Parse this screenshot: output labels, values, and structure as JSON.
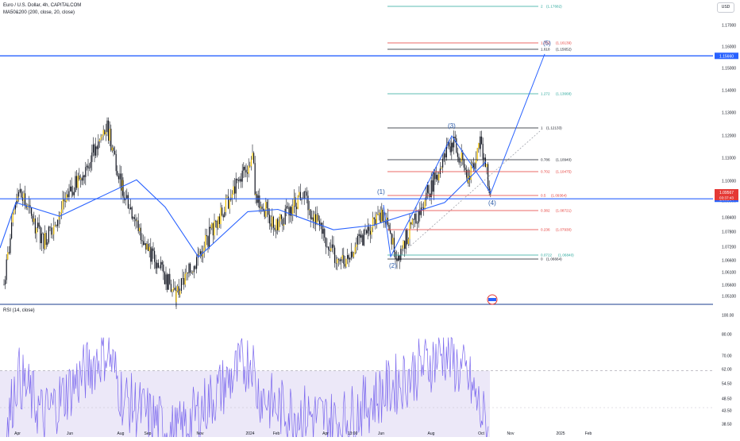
{
  "header": {
    "symbol_title": "Euro / U.S. Dollar, 4h, CAPITALCOM",
    "ma_indicator": "MA50&200 (200, close, 20, close)",
    "currency_badge": "USD",
    "rsi_indicator": "RSI (14, close)"
  },
  "colors": {
    "candle": "#131722",
    "candle_up_highlight": "#f0c000",
    "ma_line": "#2962ff",
    "level_line": "#2962ff",
    "wave_label": "#2a5aa8",
    "rsi_line": "#7b68ee",
    "rsi_fill": "#ece8f8",
    "fib_red": "#e53935",
    "fib_teal": "#26a69a",
    "fib_black": "#131722",
    "price_tag": "#e53935",
    "level_tag": "#2962ff"
  },
  "chart_data": [
    {
      "type": "line",
      "title": "Euro / U.S. Dollar, 4h, CAPITALCOM",
      "y_axis_ticks": [
        "1.17000",
        "1.16000",
        "1.15000",
        "1.14000",
        "1.13000",
        "1.12000",
        "1.11000",
        "1.10000",
        "1.09000",
        "1.08400",
        "1.07800",
        "1.07200",
        "1.06600",
        "1.06100",
        "1.05600",
        "1.05100"
      ],
      "x_axis_ticks": [
        "Apr",
        "Jun",
        "Aug",
        "Sep",
        "Nov",
        "2024",
        "Feb",
        "Apr",
        "13:00",
        "Jun",
        "Aug",
        "Oct",
        "Nov",
        "2025",
        "Feb"
      ],
      "price_anchors": [
        {
          "x": "Mar",
          "y": 1.056
        },
        {
          "x": "Apr",
          "y": 1.098
        },
        {
          "x": "May",
          "y": 1.075
        },
        {
          "x": "Jul",
          "y": 1.125
        },
        {
          "x": "Aug",
          "y": 1.098
        },
        {
          "x": "Sep",
          "y": 1.072
        },
        {
          "x": "Oct",
          "y": 1.051
        },
        {
          "x": "Dec",
          "y": 1.112
        },
        {
          "x": "2024",
          "y": 1.096
        },
        {
          "x": "Feb",
          "y": 1.081
        },
        {
          "x": "Mar",
          "y": 1.096
        },
        {
          "x": "Apr",
          "y": 1.064
        },
        {
          "x": "Jun",
          "y": 1.087
        },
        {
          "x": "Jun",
          "y": 1.068
        },
        {
          "x": "Aug",
          "y": 1.119
        },
        {
          "x": "Sep",
          "y": 1.103
        },
        {
          "x": "Sep",
          "y": 1.12
        },
        {
          "x": "Oct",
          "y": 1.09567
        }
      ],
      "moving_average": [
        {
          "x": "Mar",
          "y": 1.072
        },
        {
          "x": "Apr",
          "y": 1.092
        },
        {
          "x": "Jun",
          "y": 1.086
        },
        {
          "x": "Jul",
          "y": 1.102
        },
        {
          "x": "Sep",
          "y": 1.09
        },
        {
          "x": "Nov",
          "y": 1.068
        },
        {
          "x": "2024",
          "y": 1.088
        },
        {
          "x": "Feb",
          "y": 1.089
        },
        {
          "x": "Apr",
          "y": 1.08
        },
        {
          "x": "Jun",
          "y": 1.082
        },
        {
          "x": "Aug",
          "y": 1.092
        },
        {
          "x": "Sep",
          "y": 1.11
        }
      ],
      "horizontal_levels": [
        {
          "y": 1.1566,
          "label": "1.15660"
        },
        {
          "y": 1.09364,
          "label": "1.09364"
        }
      ],
      "current_price": {
        "value": "1.09567",
        "countdown": "03:37:43"
      },
      "fib_levels": [
        {
          "ratio": "2",
          "value": "(1.17682)",
          "color": "teal"
        },
        {
          "ratio": "1.702",
          "value": "(1.16139)",
          "color": "red"
        },
        {
          "ratio": "1.618",
          "value": "(1.15652)",
          "color": "black"
        },
        {
          "ratio": "1.272",
          "value": "(1.13668)",
          "color": "teal"
        },
        {
          "ratio": "1",
          "value": "(1.12133)",
          "color": "black"
        },
        {
          "ratio": "0.786",
          "value": "(1.10940)",
          "color": "black"
        },
        {
          "ratio": "0.702",
          "value": "(1.10475)",
          "color": "red"
        },
        {
          "ratio": "0.5",
          "value": "(1.09364)",
          "color": "red"
        },
        {
          "ratio": "0.382",
          "value": "(1.08721)",
          "color": "red"
        },
        {
          "ratio": "0.236",
          "value": "(1.07930)",
          "color": "red"
        },
        {
          "ratio": "0.0722",
          "value": "(1.06840)",
          "color": "teal"
        },
        {
          "ratio": "0",
          "value": "(1.06664)",
          "color": "black"
        }
      ],
      "wave_labels": [
        {
          "label": "(1)",
          "x": "Jun",
          "y": 1.095
        },
        {
          "label": "(2)",
          "x": "Jun",
          "y": 1.063
        },
        {
          "label": "(3)",
          "x": "Aug",
          "y": 1.124
        },
        {
          "label": "(4)",
          "x": "Oct",
          "y": 1.09
        },
        {
          "label": "(5)",
          "x": "Dec",
          "y": 1.158
        }
      ]
    },
    {
      "type": "line",
      "title": "RSI (14, close)",
      "y_axis_ticks": [
        "100.00",
        "80.00",
        "70.00",
        "62.00",
        "54.50",
        "48.50",
        "43.50",
        "38.50"
      ],
      "ylim": [
        35,
        100
      ],
      "reference_lines": [
        70,
        30
      ],
      "anchor_values": [
        {
          "x": "Mar",
          "y": 30
        },
        {
          "x": "Apr",
          "y": 68
        },
        {
          "x": "May",
          "y": 45
        },
        {
          "x": "Jul",
          "y": 82
        },
        {
          "x": "Aug",
          "y": 55
        },
        {
          "x": "Oct",
          "y": 35
        },
        {
          "x": "Dec",
          "y": 78
        },
        {
          "x": "2024",
          "y": 60
        },
        {
          "x": "Feb",
          "y": 50
        },
        {
          "x": "Apr",
          "y": 42
        },
        {
          "x": "Jun",
          "y": 58
        },
        {
          "x": "Aug",
          "y": 80
        },
        {
          "x": "Sep",
          "y": 65
        },
        {
          "x": "Oct",
          "y": 36
        }
      ]
    }
  ]
}
